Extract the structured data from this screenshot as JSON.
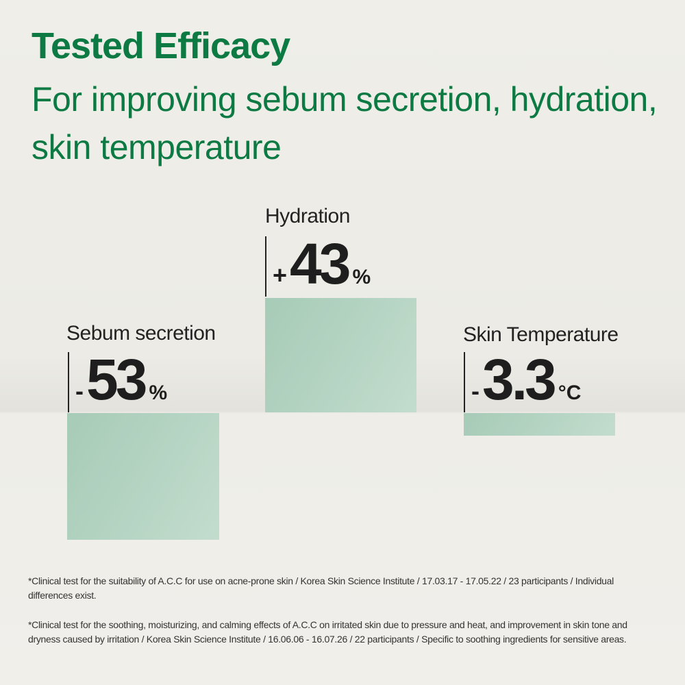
{
  "header": {
    "title": "Tested Efficacy",
    "subtitle": "For improving sebum secretion, hydration, skin temperature"
  },
  "metrics": [
    {
      "label": "Sebum secretion",
      "sign": "-",
      "value": 53,
      "unit": "%"
    },
    {
      "label": "Hydration",
      "sign": "+",
      "value": 43,
      "unit": "%"
    },
    {
      "label": "Skin Temperature",
      "sign": "-",
      "value": 3.3,
      "unit": "°C"
    }
  ],
  "footnotes": [
    "*Clinical test for the suitability of A.C.C for use on acne-prone skin / Korea Skin Science Institute / 17.03.17 - 17.05.22 / 23 participants / Individual differences exist.",
    "*Clinical test for the soothing, moisturizing, and calming effects of A.C.C on irritated skin due to pressure and heat, and improvement in skin tone and dryness caused by irritation / Korea Skin Science Institute / 16.06.06 - 16.07.26 / 22 participants / Specific to soothing ingredients for sensitive areas."
  ]
}
